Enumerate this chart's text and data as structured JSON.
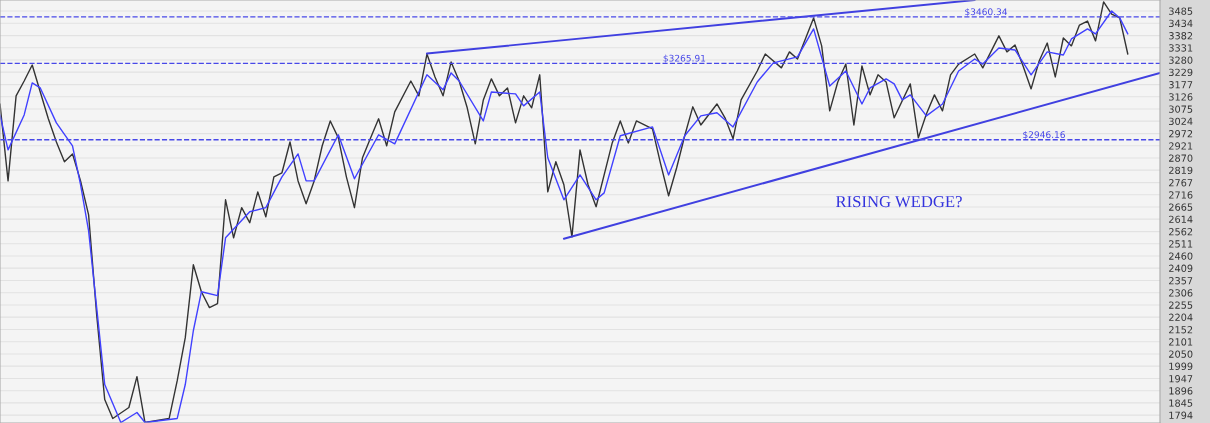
{
  "chart_data": {
    "type": "line",
    "categories": [
      null,
      null,
      null,
      null,
      null,
      null,
      null,
      null,
      null,
      null,
      null,
      null,
      null,
      null,
      null,
      null,
      null,
      null,
      null,
      null,
      null,
      null,
      null,
      null,
      null,
      null,
      null,
      null,
      null,
      null,
      null,
      null,
      null,
      null,
      null,
      null,
      null,
      null,
      null,
      null,
      null,
      null,
      null,
      null,
      null,
      null,
      null,
      null,
      null,
      null,
      null,
      null,
      null,
      null,
      null,
      null,
      null,
      null,
      null,
      null,
      null,
      null,
      null,
      null,
      null,
      null,
      null,
      null,
      null,
      null,
      null,
      null,
      null,
      null,
      null,
      null,
      null,
      null,
      null,
      null,
      null,
      null,
      null,
      null,
      null,
      null,
      null,
      null,
      null,
      null,
      null,
      null,
      null,
      null,
      null,
      null,
      null,
      null,
      null,
      null,
      null,
      null,
      null,
      null,
      null,
      null,
      null,
      null,
      null,
      null,
      null,
      null,
      null,
      null,
      null,
      null,
      null,
      null,
      null,
      null,
      null,
      null,
      null,
      null,
      null,
      null,
      null,
      null,
      null,
      null,
      null,
      null,
      null,
      null,
      null,
      null,
      null,
      null,
      null,
      null,
      null,
      null,
      null,
      null,
      null
    ],
    "ylim": [
      1761,
      3531
    ],
    "yticks": [
      1794,
      1845,
      1896,
      1947,
      1999,
      2050,
      2101,
      2152,
      2204,
      2255,
      2306,
      2357,
      2409,
      2460,
      2511,
      2562,
      2614,
      2665,
      2716,
      2767,
      2819,
      2870,
      2921,
      2972,
      3024,
      3075,
      3126,
      3177,
      3229,
      3280,
      3331,
      3382,
      3434,
      3485
    ],
    "tick_labels": "y",
    "grid": "y",
    "legend": false,
    "marker": "none",
    "line_style": "solid",
    "series": [
      {
        "color": "#333333",
        "values": [
          3096,
          2774,
          3130,
          3192,
          3259,
          3146,
          3034,
          2937,
          2854,
          2887,
          2774,
          2632,
          2214,
          1859,
          1780,
          null,
          1826,
          1955,
          1763,
          null,
          null,
          1780,
          1938,
          2118,
          2423,
          2310,
          2244,
          2260,
          2695,
          2536,
          2662,
          2599,
          2728,
          2624,
          2791,
          2808,
          2937,
          2774,
          2678,
          2774,
          2921,
          3025,
          2954,
          2791,
          2662,
          2871,
          2954,
          3034,
          2921,
          3063,
          null,
          3192,
          3130,
          3305,
          3209,
          3130,
          3272,
          3192,
          3080,
          2929,
          3113,
          3201,
          3130,
          3163,
          3017,
          3130,
          3080,
          3218,
          2728,
          2854,
          2758,
          2540,
          2904,
          2758,
          2666,
          null,
          2933,
          3025,
          2933,
          3025,
          null,
          2992,
          2846,
          2712,
          2829,
          2963,
          3084,
          3008,
          null,
          3096,
          3038,
          2950,
          3113,
          null,
          3234,
          3305,
          null,
          3247,
          3314,
          3284,
          null,
          3456,
          3339,
          3067,
          3188,
          3263,
          3008,
          3255,
          3134,
          3218,
          3188,
          3038,
          null,
          3180,
          2954,
          3054,
          3134,
          3067,
          3218,
          3263,
          null,
          3305,
          3247,
          null,
          3381,
          3314,
          3343,
          3255,
          3159,
          3276,
          3351,
          3209,
          3372,
          3339,
          3426,
          3443,
          3360,
          3523,
          3472,
          3456,
          3305,
          null,
          null,
          null,
          null
        ]
      },
      {
        "color": "#4040ff",
        "values": [
          3050,
          2904,
          null,
          3050,
          3184,
          3163,
          null,
          3017,
          null,
          2921,
          2758,
          2565,
          2244,
          1922,
          null,
          1763,
          null,
          1805,
          1763,
          null,
          null,
          null,
          1780,
          1922,
          2147,
          2310,
          null,
          2294,
          2536,
          null,
          null,
          2645,
          null,
          2662,
          null,
          2791,
          null,
          2887,
          2774,
          2774,
          null,
          null,
          2967,
          null,
          2783,
          null,
          null,
          2967,
          null,
          2929,
          null,
          null,
          null,
          3218,
          null,
          3155,
          3226,
          3192,
          null,
          null,
          3025,
          3146,
          null,
          null,
          3138,
          3088,
          null,
          3146,
          2871,
          null,
          2695,
          null,
          2799,
          null,
          2695,
          2724,
          null,
          2963,
          null,
          null,
          null,
          3000,
          null,
          2799,
          null,
          2963,
          null,
          3046,
          null,
          3059,
          null,
          3000,
          null,
          null,
          3188,
          null,
          3268,
          null,
          null,
          3293,
          null,
          3410,
          null,
          3171,
          null,
          3234,
          null,
          3096,
          3163,
          null,
          3201,
          3180,
          3113,
          3134,
          null,
          3046,
          null,
          3096,
          null,
          3234,
          null,
          3284,
          3263,
          null,
          3330,
          null,
          3322,
          null,
          3218,
          null,
          3314,
          null,
          3301,
          3368,
          null,
          3410,
          3389,
          null,
          3485,
          3456,
          3389,
          null,
          null,
          null,
          null
        ]
      },
      {
        "color": "#4040e0",
        "values": [
          null,
          null,
          null,
          null,
          null,
          null,
          null,
          null,
          null,
          null,
          null,
          null,
          null,
          null,
          null,
          null,
          null,
          null,
          null,
          null,
          null,
          null,
          null,
          null,
          null,
          null,
          null,
          null,
          null,
          null,
          null,
          null,
          null,
          null,
          null,
          null,
          null,
          null,
          null,
          null,
          null,
          null,
          null,
          null,
          null,
          null,
          null,
          null,
          null,
          null,
          null,
          null,
          null,
          3307,
          null,
          null,
          null,
          null,
          null,
          null,
          null,
          null,
          null,
          null,
          null,
          null,
          null,
          null,
          null,
          null,
          null,
          null,
          null,
          null,
          null,
          null,
          null,
          null,
          null,
          null,
          null,
          null,
          null,
          null,
          null,
          null,
          null,
          null,
          null,
          null,
          null,
          null,
          null,
          null,
          null,
          null,
          null,
          null,
          null,
          null,
          null,
          null,
          null,
          null,
          null,
          null,
          null,
          null,
          null,
          null,
          null,
          null,
          null,
          null,
          null,
          null,
          null,
          null,
          null,
          null,
          null,
          3531,
          null,
          null,
          null,
          null,
          null,
          null,
          null,
          null,
          null,
          null,
          null,
          null,
          null,
          null,
          null,
          null,
          null,
          null,
          null,
          null,
          null,
          null,
          null
        ]
      },
      {
        "color": "#4040e0",
        "values": [
          null,
          null,
          null,
          null,
          null,
          null,
          null,
          null,
          null,
          null,
          null,
          null,
          null,
          null,
          null,
          null,
          null,
          null,
          null,
          null,
          null,
          null,
          null,
          null,
          null,
          null,
          null,
          null,
          null,
          null,
          null,
          null,
          null,
          null,
          null,
          null,
          null,
          null,
          null,
          null,
          null,
          null,
          null,
          null,
          null,
          null,
          null,
          null,
          null,
          null,
          null,
          null,
          null,
          null,
          null,
          null,
          null,
          null,
          null,
          null,
          null,
          null,
          null,
          null,
          null,
          null,
          null,
          null,
          null,
          null,
          2532,
          null,
          null,
          null,
          null,
          null,
          null,
          null,
          null,
          null,
          null,
          null,
          null,
          null,
          null,
          null,
          null,
          null,
          null,
          null,
          null,
          null,
          null,
          null,
          null,
          null,
          null,
          null,
          null,
          null,
          null,
          null,
          null,
          null,
          null,
          null,
          null,
          null,
          null,
          null,
          null,
          null,
          null,
          null,
          null,
          null,
          null,
          null,
          null,
          null,
          null,
          null,
          null,
          null,
          null,
          null,
          null,
          null,
          null,
          null,
          null,
          null,
          null,
          null,
          null,
          null,
          null,
          null,
          null,
          null,
          null,
          null,
          null,
          null,
          3226
        ]
      }
    ],
    "ref_lines": [
      {
        "axis": "y",
        "value": 3460.34,
        "label": "$3460.34",
        "color": "#4848e8",
        "line_style": "dashed"
      },
      {
        "axis": "y",
        "value": 3265.91,
        "label": "$3265.91",
        "color": "#4848e8",
        "line_style": "dashed"
      },
      {
        "axis": "y",
        "value": 2946.16,
        "label": "$2946.16",
        "color": "#4848e8",
        "line_style": "dashed"
      }
    ],
    "annotations": [
      "RISING WEDGE?"
    ]
  }
}
